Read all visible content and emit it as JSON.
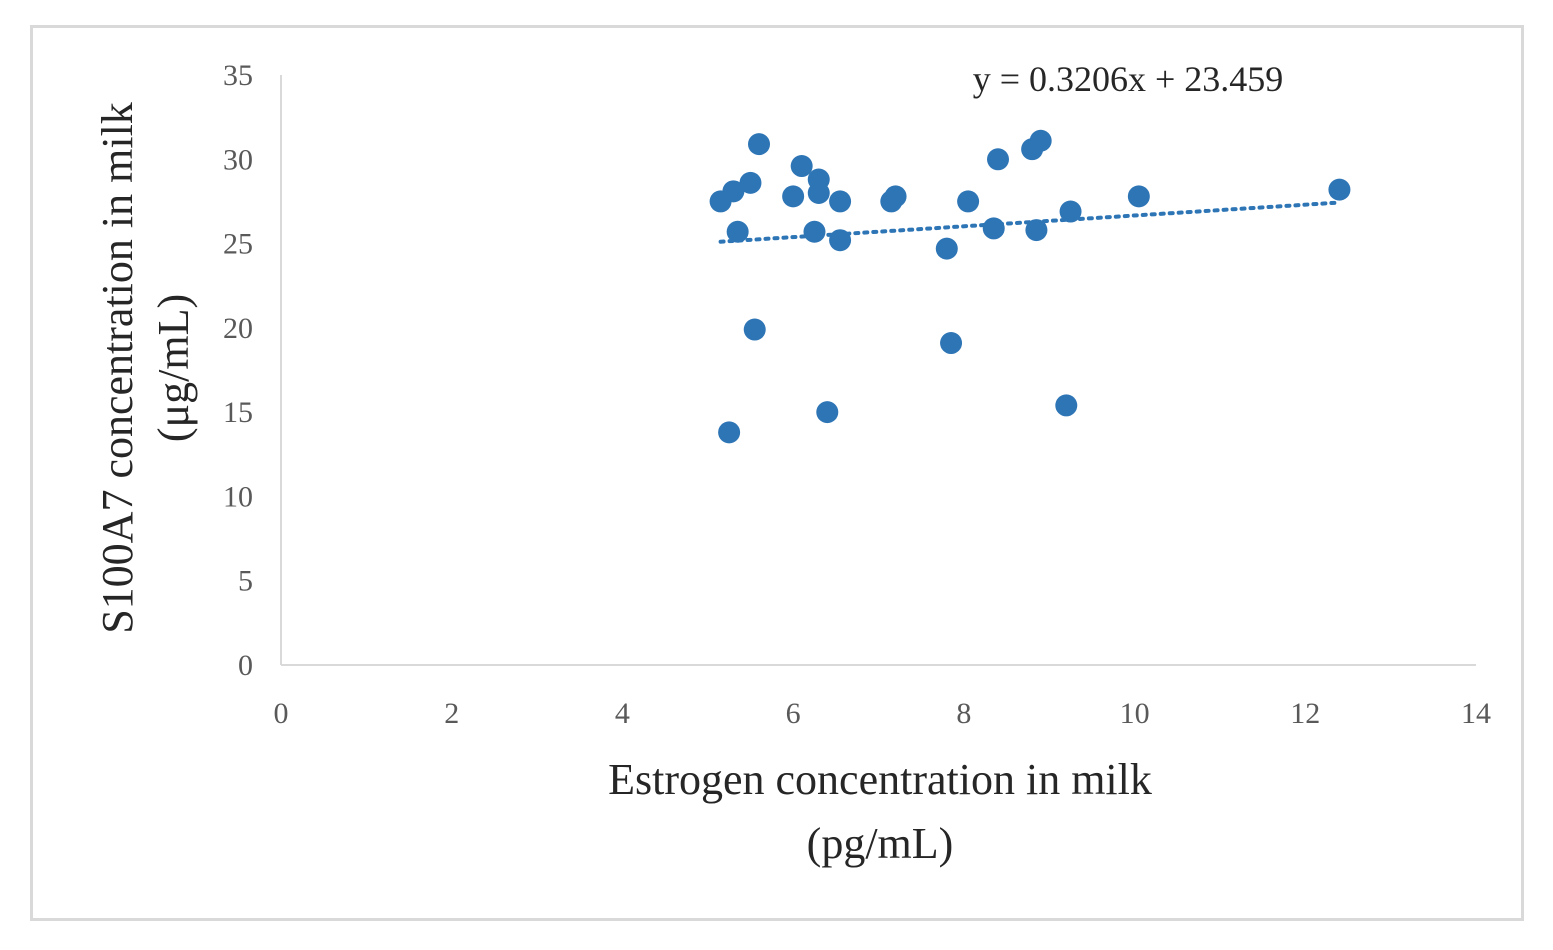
{
  "chart_data": {
    "type": "scatter",
    "title": "",
    "xlabel_lines": [
      "Estrogen concentration in milk",
      "(pg/mL)"
    ],
    "ylabel_lines": [
      "S100A7 concentration in milk",
      "(μg/mL)"
    ],
    "xlim": [
      0,
      14
    ],
    "ylim": [
      0,
      35
    ],
    "x_ticks": [
      0,
      2,
      4,
      6,
      8,
      10,
      12,
      14
    ],
    "y_ticks": [
      0,
      5,
      10,
      15,
      20,
      25,
      30,
      35
    ],
    "grid": false,
    "marker_color": "#2e75b6",
    "trendline": {
      "type": "linear",
      "style": "dotted",
      "color": "#2e75b6",
      "slope": 0.3206,
      "intercept": 23.459,
      "x_range": [
        5.15,
        12.4
      ],
      "equation_label": "y = 0.3206x + 23.459"
    },
    "series": [
      {
        "points": [
          {
            "x": 5.15,
            "y": 27.5
          },
          {
            "x": 5.25,
            "y": 13.8
          },
          {
            "x": 5.3,
            "y": 28.1
          },
          {
            "x": 5.35,
            "y": 25.7
          },
          {
            "x": 5.5,
            "y": 28.6
          },
          {
            "x": 5.55,
            "y": 19.9
          },
          {
            "x": 5.6,
            "y": 30.9
          },
          {
            "x": 6.0,
            "y": 27.8
          },
          {
            "x": 6.1,
            "y": 29.6
          },
          {
            "x": 6.25,
            "y": 25.7
          },
          {
            "x": 6.3,
            "y": 28.0
          },
          {
            "x": 6.3,
            "y": 28.8
          },
          {
            "x": 6.4,
            "y": 15.0
          },
          {
            "x": 6.55,
            "y": 25.2
          },
          {
            "x": 6.55,
            "y": 27.5
          },
          {
            "x": 7.15,
            "y": 27.5
          },
          {
            "x": 7.2,
            "y": 27.8
          },
          {
            "x": 7.8,
            "y": 24.7
          },
          {
            "x": 7.85,
            "y": 19.1
          },
          {
            "x": 8.05,
            "y": 27.5
          },
          {
            "x": 8.35,
            "y": 25.9
          },
          {
            "x": 8.4,
            "y": 30.0
          },
          {
            "x": 8.8,
            "y": 30.6
          },
          {
            "x": 8.85,
            "y": 25.8
          },
          {
            "x": 8.9,
            "y": 31.1
          },
          {
            "x": 9.2,
            "y": 15.4
          },
          {
            "x": 9.25,
            "y": 26.9
          },
          {
            "x": 10.05,
            "y": 27.8
          },
          {
            "x": 12.4,
            "y": 28.2
          }
        ]
      }
    ]
  }
}
